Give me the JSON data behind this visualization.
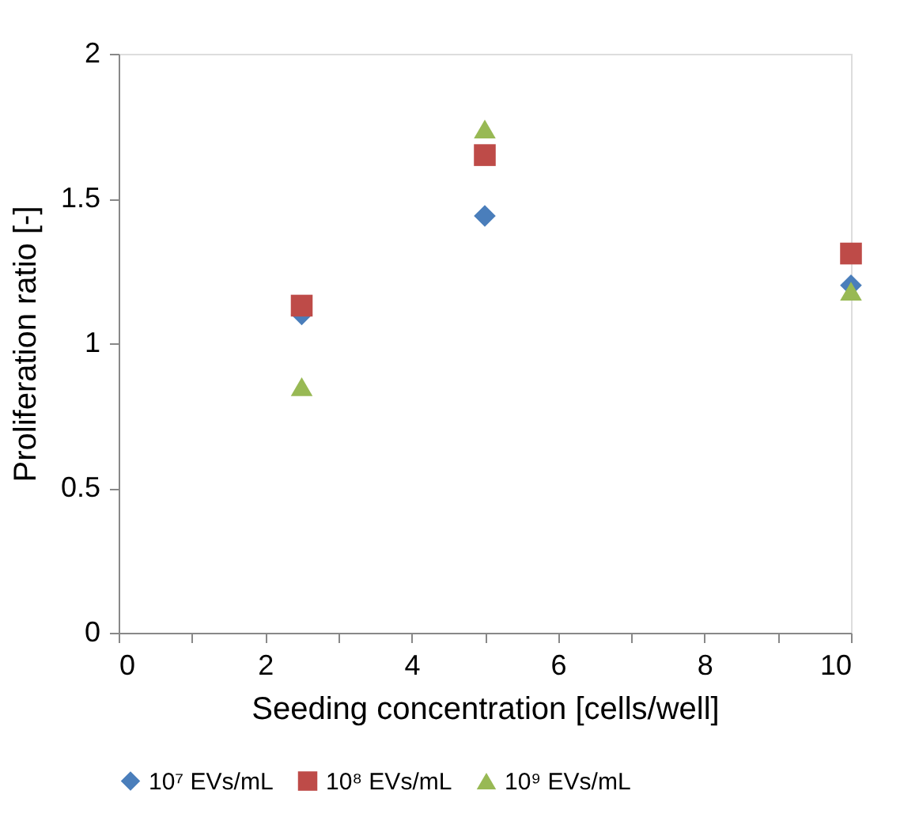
{
  "chart_data": {
    "type": "scatter",
    "xlabel": "Seeding concentration [cells/well]",
    "ylabel": "Proliferation ratio [-]",
    "x": [
      2.5,
      5,
      10
    ],
    "series": [
      {
        "name": "10⁷ EVs/mL",
        "color": "#4a7ebb",
        "marker": "diamond",
        "values": [
          1.1,
          1.44,
          1.2
        ]
      },
      {
        "name": "10⁸ EVs/mL",
        "color": "#be4b48",
        "marker": "square",
        "values": [
          1.13,
          1.65,
          1.31
        ]
      },
      {
        "name": "10⁹ EVs/mL",
        "color": "#98b954",
        "marker": "triangle",
        "values": [
          0.85,
          1.74,
          1.18
        ]
      }
    ],
    "xlim": [
      0,
      10
    ],
    "xticks": [
      0,
      {
        "value": 1,
        "label": null
      },
      2,
      {
        "value": 3,
        "label": null
      },
      4,
      {
        "value": 5,
        "label": null
      },
      6,
      {
        "value": 7,
        "label": null
      },
      8,
      {
        "value": 9,
        "label": null
      },
      10
    ],
    "ylim": [
      0,
      2
    ],
    "yticks": [
      0,
      0.5,
      1,
      1.5,
      2
    ],
    "grid": false,
    "legend": "bottom"
  }
}
